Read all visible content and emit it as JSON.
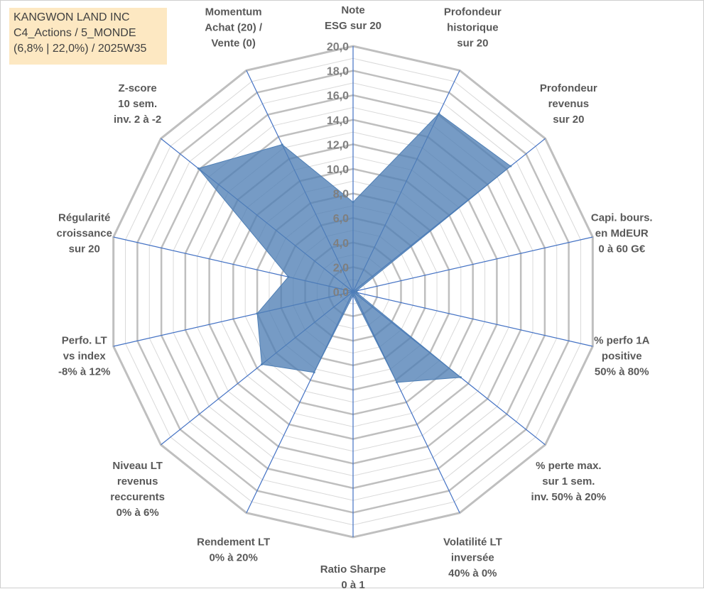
{
  "title_box": {
    "line1": "KANGWON LAND INC",
    "line2": "C4_Actions / 5_MONDE",
    "line3": "(6,8% | 22,0%) / 2025W35"
  },
  "colors": {
    "fill": "#4f7fb5",
    "fill_opacity": 0.78,
    "spoke": "#4472c4",
    "major_ring": "#bfbfbf",
    "minor_ring": "#d9d9d9",
    "title_bg": "#fde8c2"
  },
  "chart_data": {
    "type": "radar",
    "rmin": 0,
    "rmax": 20,
    "major_step": 2,
    "minor_step": 1,
    "tick_labels": [
      "0,0",
      "2,0",
      "4,0",
      "6,0",
      "8,0",
      "10,0",
      "12,0",
      "14,0",
      "16,0",
      "18,0",
      "20,0"
    ],
    "axes": [
      {
        "label": [
          "Note",
          "ESG sur 20"
        ],
        "value": 7.3
      },
      {
        "label": [
          "Profondeur",
          "historique",
          "sur 20"
        ],
        "value": 16.1
      },
      {
        "label": [
          "Profondeur",
          "revenus",
          "sur 20"
        ],
        "value": 16.4
      },
      {
        "label": [
          "Capi. bours.",
          "en MdEUR",
          "0 à 60 G€"
        ],
        "value": 0.3
      },
      {
        "label": [
          "% perfo 1A",
          "positive",
          "50% à 80%"
        ],
        "value": 0.3
      },
      {
        "label": [
          "% perte max.",
          "sur 1 sem.",
          "inv. 50% à 20%"
        ],
        "value": 11.2
      },
      {
        "label": [
          "Volatilité LT",
          "inversée",
          "40% à 0%"
        ],
        "value": 8.2
      },
      {
        "label": [
          "Ratio Sharpe",
          "0 à 1"
        ],
        "value": 0.3
      },
      {
        "label": [
          "Rendement LT",
          "0% à 20%"
        ],
        "value": 7.3
      },
      {
        "label": [
          "Niveau LT",
          "revenus",
          "reccurents",
          "0% à 6%"
        ],
        "value": 9.5
      },
      {
        "label": [
          "Perfo. LT",
          "vs index",
          "-8% à 12%"
        ],
        "value": 8.0
      },
      {
        "label": [
          "Régularité",
          "croissance",
          "sur 20"
        ],
        "value": 5.4
      },
      {
        "label": [
          "Z-score",
          "10 sem.",
          "inv. 2 à -2"
        ],
        "value": 16.1
      },
      {
        "label": [
          "Momentum",
          "Achat (20) /",
          "Vente (0)"
        ],
        "value": 13.3
      }
    ]
  }
}
